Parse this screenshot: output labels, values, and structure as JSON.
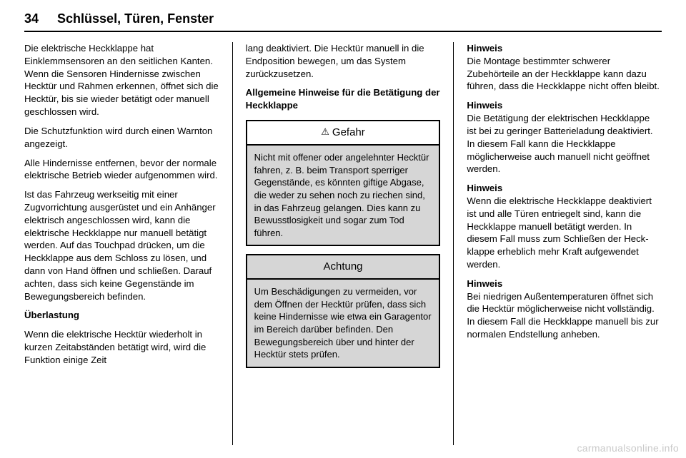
{
  "header": {
    "page_number": "34",
    "section": "Schlüssel, Türen, Fenster"
  },
  "columns": {
    "left": {
      "p1": "Die elektrische Heckklappe hat Einklemmsensoren an den seitlichen Kanten. Wenn die Sensoren Hinder­nisse zwischen Hecktür und Rahmen erkennen, öffnet sich die Hecktür, bis sie wieder betätigt oder manuell geschlossen wird.",
      "p2": "Die Schutzfunktion wird durch einen Warnton angezeigt.",
      "p3": "Alle Hindernisse entfernen, bevor der normale elektrische Betrieb wieder aufgenommen wird.",
      "p4": "Ist das Fahrzeug werkseitig mit einer Zugvorrichtung ausgerüstet und ein Anhänger elektrisch angeschlossen wird, kann die elektrische Heckklappe nur manuell betätigt werden. Auf das Touchpad drücken, um die Heck­klappe aus dem Schloss zu lösen, und dann von Hand öffnen und schlie­ßen. Darauf achten, dass sich keine Gegenstände im Bewegungsbereich befinden.",
      "h1": "Überlastung",
      "p5": "Wenn die elektrische Hecktür wieder­holt in kurzen Zeitabständen betätigt wird, wird die Funktion einige Zeit"
    },
    "middle": {
      "p1": "lang deaktiviert. Die Hecktür manuell in die Endposition bewegen, um das System zurückzusetzen.",
      "h1": "Allgemeine Hinweise für die Betätigung der Heckklappe",
      "danger_title": "Gefahr",
      "danger_body": "Nicht mit offener oder angelehnter Hecktür fahren, z. B. beim Trans­port sperriger Gegenstände, es könnten giftige Abgase, die weder zu sehen noch zu riechen sind, in das Fahrzeug gelangen. Dies kann zu Bewusstlosigkeit und sogar zum Tod führen.",
      "caution_title": "Achtung",
      "caution_body": "Um Beschädigungen zu vermei­den, vor dem Öffnen der Hecktür prüfen, dass sich keine Hinder­nisse wie etwa ein Garagentor im Bereich darüber befinden. Den Bewegungsbereich über und hinter der Hecktür stets prüfen."
    },
    "right": {
      "h1": "Hinweis",
      "p1": "Die Montage bestimmter schwerer Zubehörteile an der Heckklappe kann dazu führen, dass die Heck­klappe nicht offen bleibt.",
      "h2": "Hinweis",
      "p2": "Die Betätigung der elektrischen Heckklappe ist bei zu geringer Batterieladung deaktiviert. In diesem Fall kann die Heckklappe möglicherweise auch manuell nicht geöffnet werden.",
      "h3": "Hinweis",
      "p3": "Wenn die elektrische Heckklappe deaktiviert ist und alle Türen entrie­gelt sind, kann die Heckklappe manuell betätigt werden. In diesem Fall muss zum Schließen der Heck­klappe erheblich mehr Kraft aufge­wendet werden.",
      "h4": "Hinweis",
      "p4": "Bei niedrigen Außentemperaturen öffnet sich die Hecktür möglicher­weise nicht vollständig. In diesem Fall die Heckklappe manuell bis zur normalen Endstellung anheben."
    }
  },
  "footer": {
    "text": "carmanualsonline.info"
  }
}
